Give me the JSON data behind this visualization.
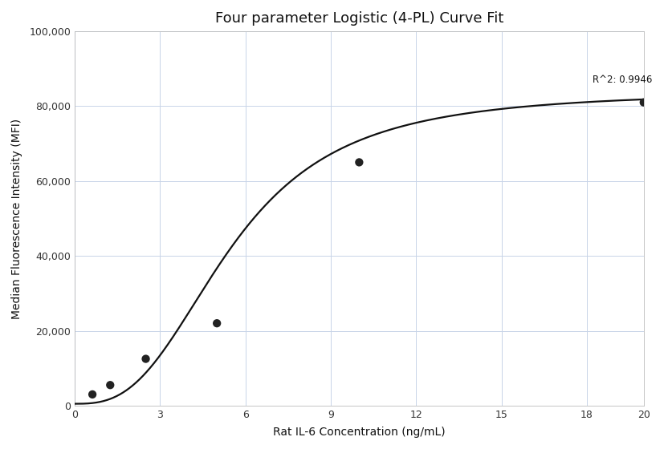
{
  "title": "Four parameter Logistic (4-PL) Curve Fit",
  "xlabel": "Rat IL-6 Concentration (ng/mL)",
  "ylabel": "Median Fluorescence Intensity (MFI)",
  "xlim": [
    0,
    20
  ],
  "ylim": [
    0,
    100000
  ],
  "xticks": [
    0,
    3,
    6,
    9,
    12,
    15,
    18,
    20
  ],
  "yticks": [
    0,
    20000,
    40000,
    60000,
    80000,
    100000
  ],
  "ytick_labels": [
    "0",
    "20,000",
    "40,000",
    "60,000",
    "80,000",
    "100,000"
  ],
  "scatter_x": [
    0.625,
    1.25,
    2.5,
    5.0,
    10.0,
    20.0
  ],
  "scatter_y": [
    3000,
    5500,
    12500,
    22000,
    65000,
    81000
  ],
  "r_squared": "R^2: 0.9946",
  "r2_x": 18.2,
  "r2_y": 87000,
  "4pl_A": 500,
  "4pl_B": 84000,
  "4pl_C": 5.5,
  "4pl_D": 2.8,
  "curve_color": "#111111",
  "scatter_color": "#222222",
  "grid_color": "#c8d4e8",
  "background_color": "#ffffff",
  "title_fontsize": 13,
  "label_fontsize": 10,
  "tick_fontsize": 9,
  "annotation_fontsize": 8.5
}
